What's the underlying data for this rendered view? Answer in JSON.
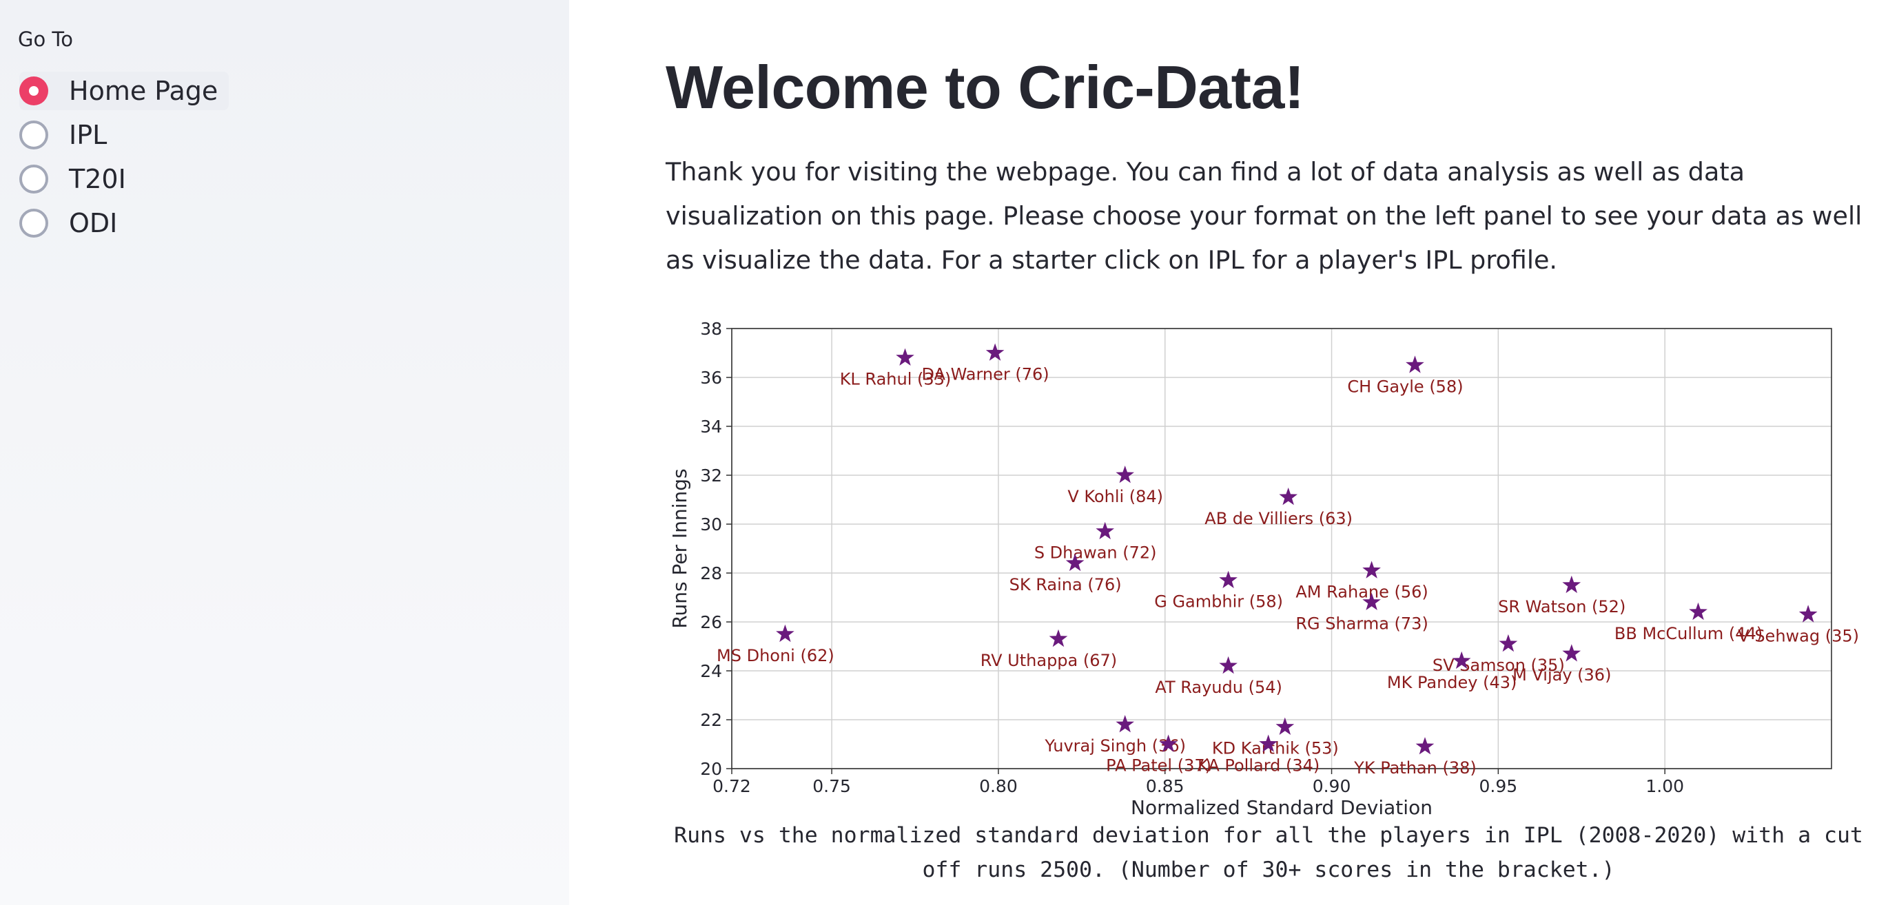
{
  "sidebar": {
    "label": "Go To",
    "options": [
      {
        "label": "Home Page",
        "selected": true
      },
      {
        "label": "IPL",
        "selected": false
      },
      {
        "label": "T20I",
        "selected": false
      },
      {
        "label": "ODI",
        "selected": false
      }
    ],
    "accent_color": "#ec3f67"
  },
  "main": {
    "title": "Welcome to Cric-Data!",
    "intro": "Thank you for visiting the webpage. You can find a lot of data analysis as well as data visualization on this page. Please choose your format on the left panel to see your data as well as visualize the data. For a starter click on IPL for a player's IPL profile.",
    "caption": "Runs vs the normalized standard deviation for all the players in IPL (2008-2020) with a cut off runs 2500. (Number of 30+ scores in the bracket.)"
  },
  "chart_data": {
    "type": "scatter",
    "xlabel": "Normalized Standard Deviation",
    "ylabel": "Runs Per Innings",
    "xlim": [
      0.72,
      1.05
    ],
    "ylim": [
      20,
      38
    ],
    "xticks": [
      "0.72",
      "0.75",
      "0.80",
      "0.85",
      "0.90",
      "0.95",
      "1.00"
    ],
    "yticks": [
      "20",
      "22",
      "24",
      "26",
      "28",
      "30",
      "32",
      "34",
      "36",
      "38"
    ],
    "grid": true,
    "marker": "star",
    "marker_color": "#6a1a7d",
    "label_color": "#8b1c1c",
    "points": [
      {
        "label": "KL Rahul (33)",
        "x": 0.772,
        "y": 36.8
      },
      {
        "label": "DA Warner (76)",
        "x": 0.799,
        "y": 37.0
      },
      {
        "label": "CH Gayle (58)",
        "x": 0.925,
        "y": 36.5
      },
      {
        "label": "V Kohli (84)",
        "x": 0.838,
        "y": 32.0
      },
      {
        "label": "AB de Villiers (63)",
        "x": 0.887,
        "y": 31.1
      },
      {
        "label": "S Dhawan (72)",
        "x": 0.832,
        "y": 29.7
      },
      {
        "label": "SK Raina (76)",
        "x": 0.823,
        "y": 28.4
      },
      {
        "label": "G Gambhir (58)",
        "x": 0.869,
        "y": 27.7
      },
      {
        "label": "AM Rahane (56)",
        "x": 0.912,
        "y": 28.1
      },
      {
        "label": "RG Sharma (73)",
        "x": 0.912,
        "y": 26.8
      },
      {
        "label": "SR Watson (52)",
        "x": 0.972,
        "y": 27.5
      },
      {
        "label": "BB McCullum (44)",
        "x": 1.01,
        "y": 26.4
      },
      {
        "label": "V Sehwag (35)",
        "x": 1.043,
        "y": 26.3
      },
      {
        "label": "MS Dhoni (62)",
        "x": 0.736,
        "y": 25.5
      },
      {
        "label": "RV Uthappa (67)",
        "x": 0.818,
        "y": 25.3
      },
      {
        "label": "AT Rayudu (54)",
        "x": 0.869,
        "y": 24.2
      },
      {
        "label": "SV Samson (35)",
        "x": 0.953,
        "y": 25.1
      },
      {
        "label": "MK Pandey (43)",
        "x": 0.939,
        "y": 24.4
      },
      {
        "label": "M Vijay (36)",
        "x": 0.972,
        "y": 24.7
      },
      {
        "label": "Yuvraj Singh (36)",
        "x": 0.838,
        "y": 21.8
      },
      {
        "label": "PA Patel (37)",
        "x": 0.851,
        "y": 21.0
      },
      {
        "label": "KD Karthik (53)",
        "x": 0.886,
        "y": 21.7
      },
      {
        "label": "KA Pollard (34)",
        "x": 0.881,
        "y": 21.0
      },
      {
        "label": "YK Pathan (38)",
        "x": 0.928,
        "y": 20.9
      }
    ]
  }
}
